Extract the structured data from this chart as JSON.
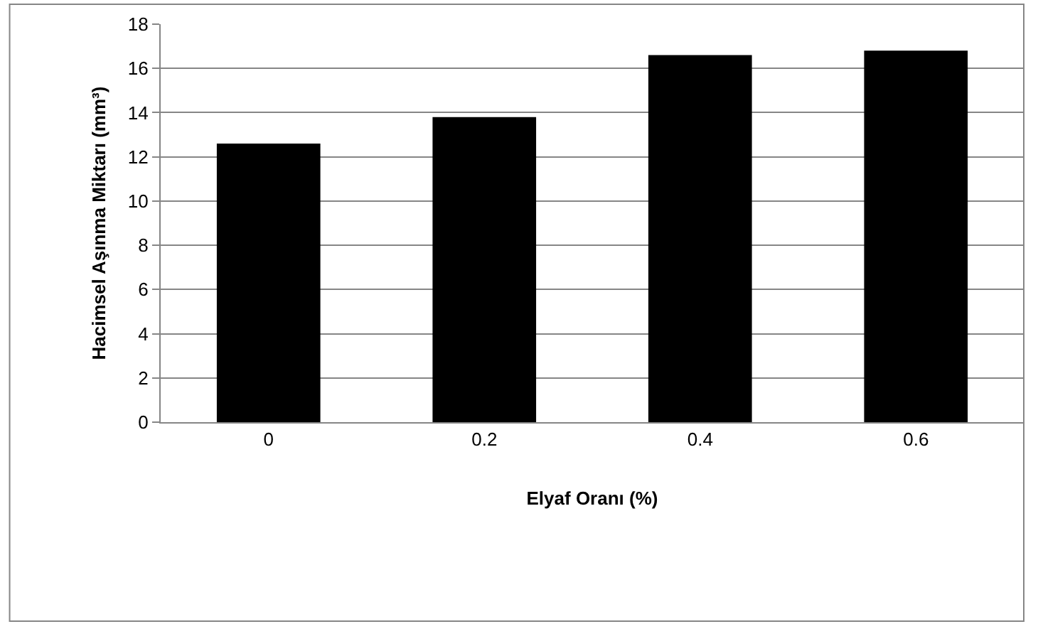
{
  "chart_data": {
    "type": "bar",
    "xlabel": "Elyaf Oranı (%)",
    "ylabel": "Hacimsel Aşınma Miktarı (mm³)",
    "categories": [
      "0",
      "0.2",
      "0.4",
      "0.6"
    ],
    "values": [
      12.6,
      13.8,
      16.6,
      16.8
    ],
    "color": "#000000",
    "ylim": [
      0,
      18
    ],
    "yticks": [
      0,
      2,
      4,
      6,
      8,
      10,
      12,
      14,
      16,
      18
    ],
    "grid": "y"
  }
}
